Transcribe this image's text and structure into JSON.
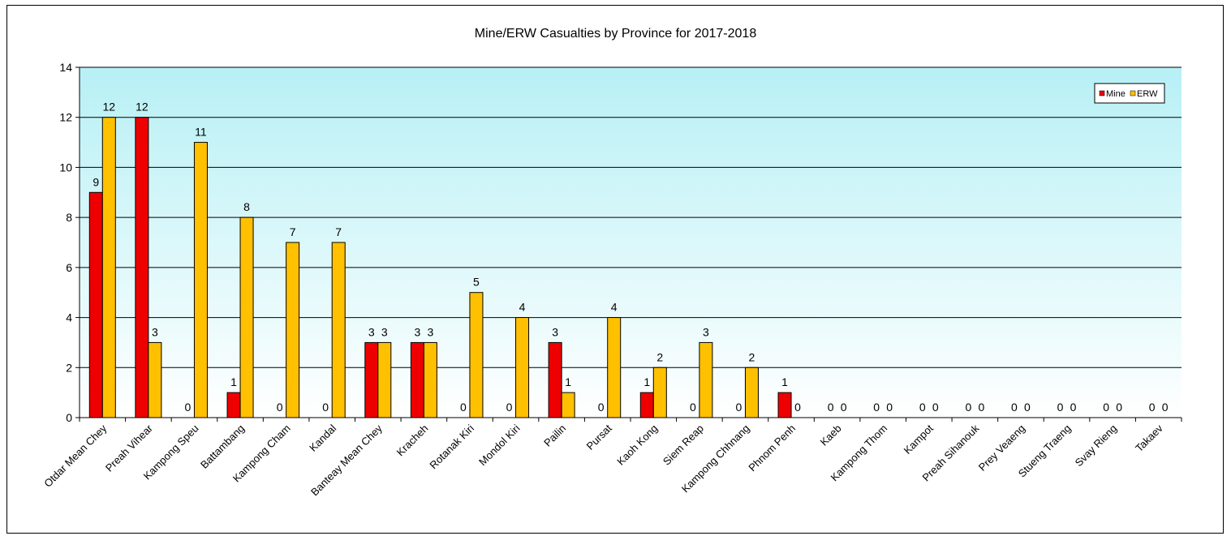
{
  "chart_data": {
    "type": "bar",
    "title": "Mine/ERW Casualties by Province for 2017-2018",
    "xlabel": "",
    "ylabel": "",
    "ylim": [
      0,
      14
    ],
    "yticks": [
      0,
      2,
      4,
      6,
      8,
      10,
      12,
      14
    ],
    "grid": true,
    "legend_position": "top-right",
    "categories": [
      "Otdar Mean Chey",
      "Preah Vihear",
      "Kampong Speu",
      "Battambang",
      "Kampong Cham",
      "Kandal",
      "Banteay Mean Chey",
      "Kracheh",
      "Rotanak Kiri",
      "Mondol Kiri",
      "Pailin",
      "Pursat",
      "Kaoh Kong",
      "Siem Reap",
      "Kampong Chhnang",
      "Phnom Penh",
      "Kaeb",
      "Kampong Thom",
      "Kampot",
      "Preah Sihanouk",
      "Prey Veaeng",
      "Stueng Traeng",
      "Svay Rieng",
      "Takaev"
    ],
    "series": [
      {
        "name": "Mine",
        "color": "#ee0000",
        "values": [
          9,
          12,
          0,
          1,
          0,
          0,
          3,
          3,
          0,
          0,
          3,
          0,
          1,
          0,
          0,
          1,
          0,
          0,
          0,
          0,
          0,
          0,
          0,
          0
        ]
      },
      {
        "name": "ERW",
        "color": "#ffc000",
        "values": [
          12,
          3,
          11,
          8,
          7,
          7,
          3,
          3,
          5,
          4,
          1,
          4,
          2,
          3,
          2,
          0,
          0,
          0,
          0,
          0,
          0,
          0,
          0,
          0
        ]
      }
    ]
  }
}
